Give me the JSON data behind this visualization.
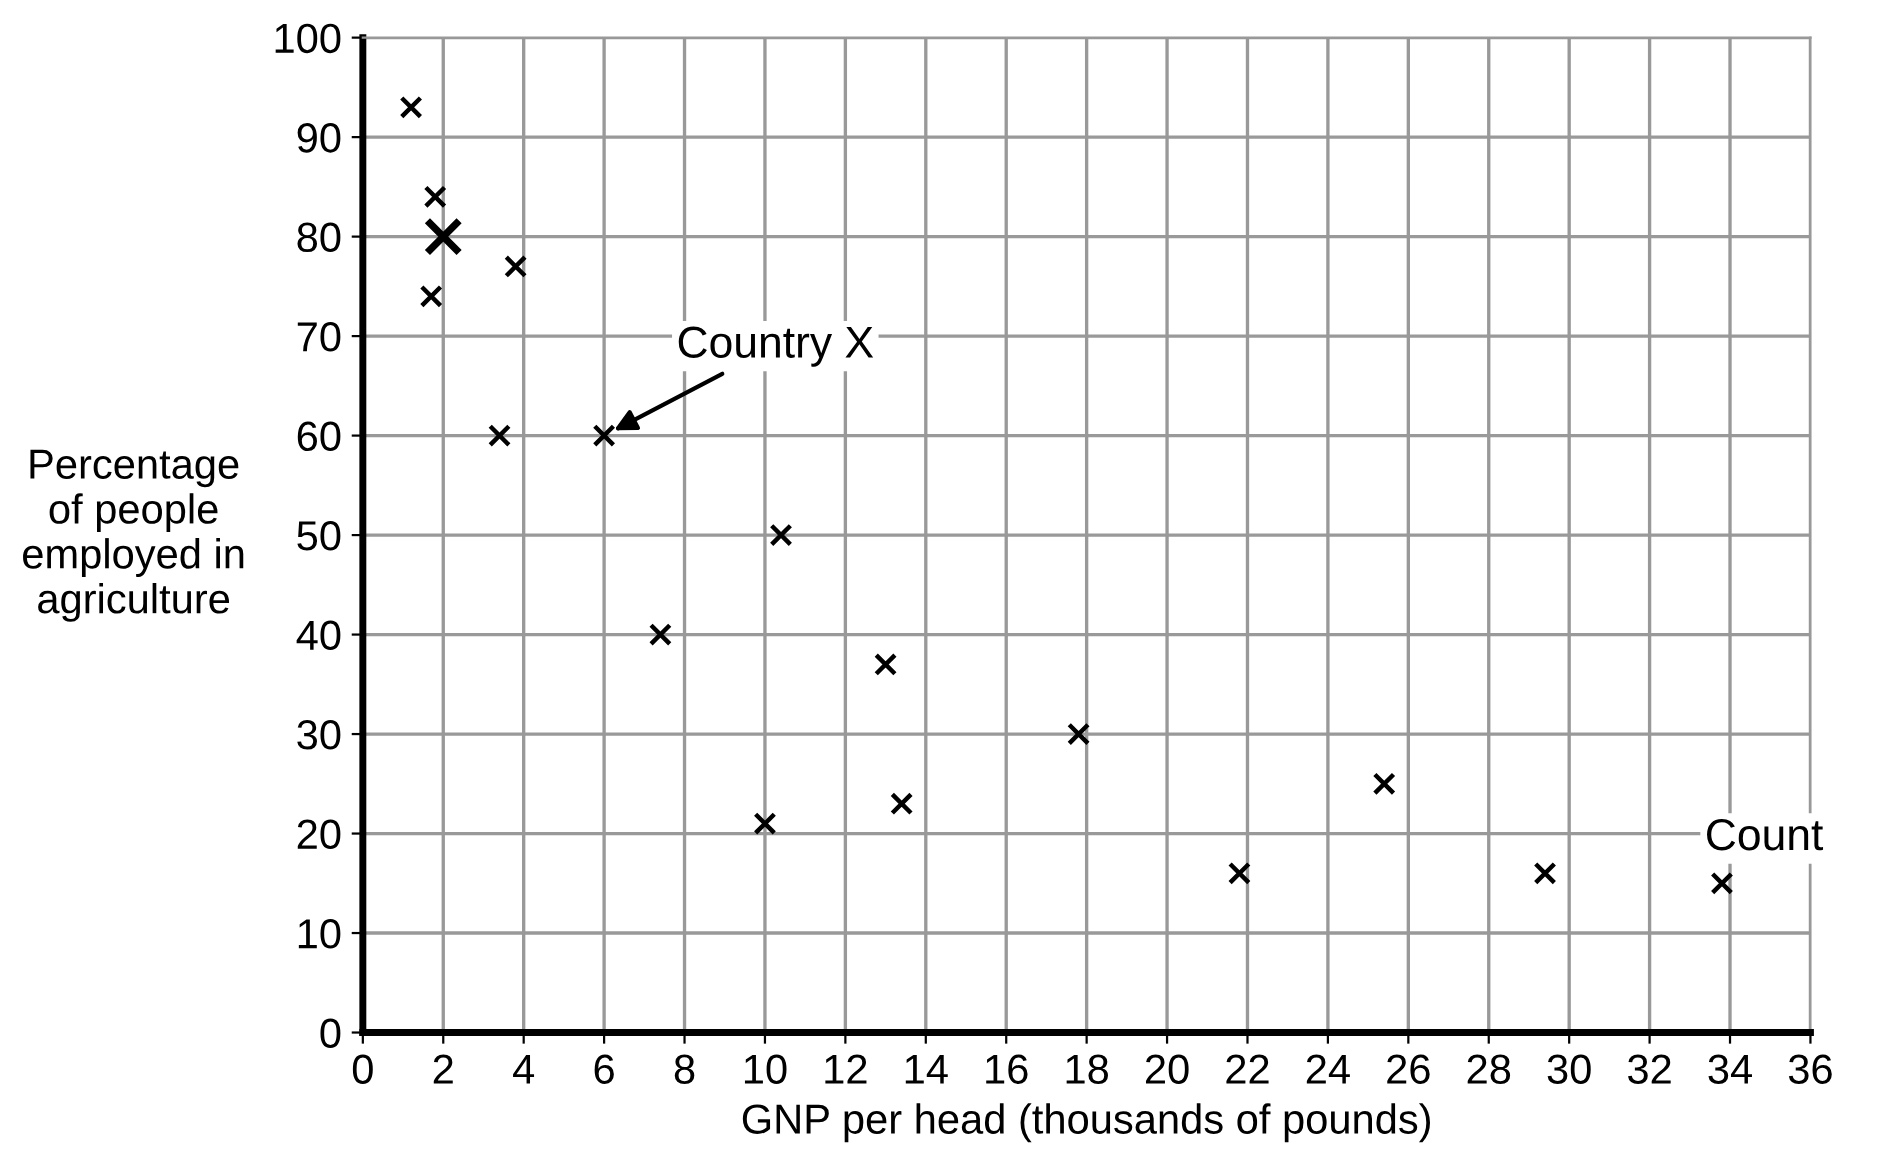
{
  "chart_data": {
    "type": "scatter",
    "xlabel": "GNP per head (thousands of pounds)",
    "ylabel": "Percentage\nof people\nemployed in\nagriculture",
    "series": [
      {
        "color": "#000000",
        "x": [
          1.2,
          1.8,
          3.8,
          1.7,
          3.4,
          6,
          10.4,
          7.4,
          10,
          13,
          13.4,
          17.8,
          21.8,
          25.4,
          29.4,
          33.8
        ],
        "values": [
          93,
          84,
          77,
          74,
          60,
          60,
          50,
          40,
          21,
          37,
          23,
          30,
          16,
          25,
          16,
          15
        ]
      },
      {
        "color": "#000000",
        "x": [
          2
        ],
        "values": [
          80
        ]
      }
    ],
    "xlim": [
      0,
      36
    ],
    "ylim": [
      0,
      100
    ],
    "xticks": [
      0,
      2,
      4,
      6,
      8,
      10,
      12,
      14,
      16,
      18,
      20,
      22,
      24,
      26,
      28,
      30,
      32,
      34,
      36
    ],
    "yticks": [
      0,
      10,
      20,
      30,
      40,
      50,
      60,
      70,
      80,
      90,
      100
    ],
    "grid": true,
    "marker": "cross",
    "annotations": [
      {
        "text": "Country X",
        "x": 6,
        "y": 60
      },
      "Count"
    ]
  }
}
